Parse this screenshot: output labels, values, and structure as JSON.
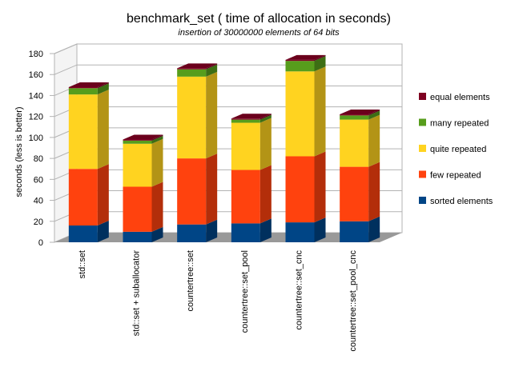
{
  "chart_data": {
    "type": "bar",
    "stacked": true,
    "style": "3d",
    "title": "benchmark_set ( time of allocation in seconds)",
    "subtitle": "insertion of 30000000 elements of 64 bits",
    "xlabel": "",
    "ylabel": "seconds (less is better)",
    "ylim": [
      0,
      180
    ],
    "yticks": [
      "0",
      "20",
      "40",
      "60",
      "80",
      "100",
      "120",
      "140",
      "160",
      "180"
    ],
    "grid": true,
    "legend_position": "right",
    "categories": [
      "std::set",
      "std::set + suballocator",
      "countertree::set",
      "countertree::set_pool",
      "countertree::set_cnc",
      "countertree::set_pool_cnc"
    ],
    "series": [
      {
        "name": "sorted elements",
        "color": "#004586",
        "values": [
          16,
          10,
          17,
          18,
          19,
          20
        ]
      },
      {
        "name": "few repeated",
        "color": "#ff420e",
        "values": [
          54,
          43,
          63,
          51,
          63,
          52
        ]
      },
      {
        "name": "quite repeated",
        "color": "#ffd320",
        "values": [
          71,
          41,
          78,
          45,
          81,
          45
        ]
      },
      {
        "name": "many repeated",
        "color": "#579d1c",
        "values": [
          6,
          3,
          7,
          3,
          10,
          4
        ]
      },
      {
        "name": "equal elements",
        "color": "#7e0021",
        "values": [
          1,
          1,
          1,
          1,
          1,
          1
        ]
      }
    ]
  }
}
